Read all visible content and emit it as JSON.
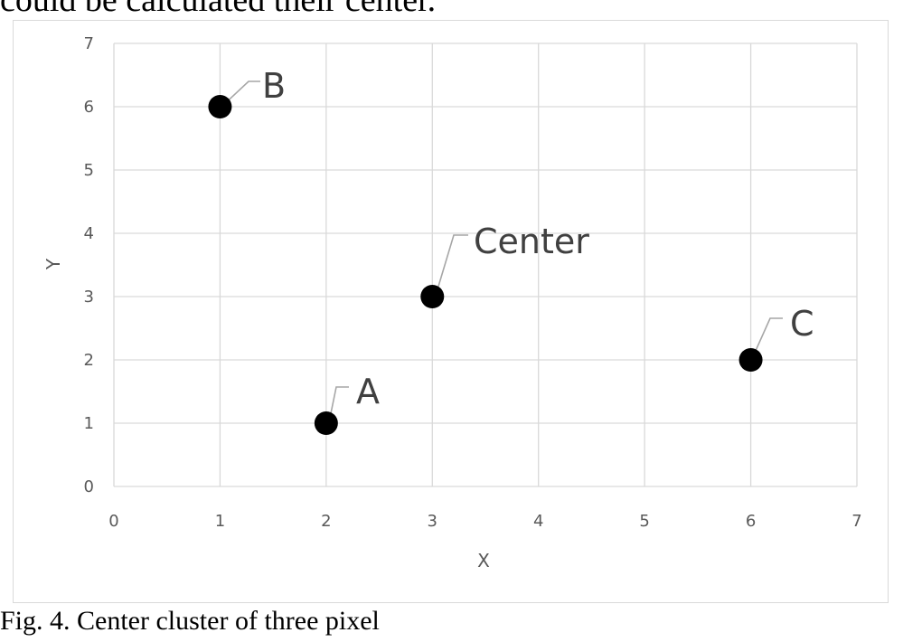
{
  "header": {
    "text": "could be calculated their center."
  },
  "figure": {
    "caption": "Fig. 4. Center cluster of three pixel"
  },
  "chart_data": {
    "type": "scatter",
    "title": "",
    "xlabel": "X",
    "ylabel": "Y",
    "xlim": [
      0,
      7
    ],
    "ylim": [
      0,
      7
    ],
    "xticks": [
      "0",
      "1",
      "2",
      "3",
      "4",
      "5",
      "6",
      "7"
    ],
    "yticks": [
      "0",
      "1",
      "2",
      "3",
      "4",
      "5",
      "6",
      "7"
    ],
    "grid": true,
    "legend": "none",
    "points": [
      {
        "label": "A",
        "x": 2,
        "y": 1
      },
      {
        "label": "B",
        "x": 1,
        "y": 6
      },
      {
        "label": "Center",
        "x": 3,
        "y": 3
      },
      {
        "label": "C",
        "x": 6,
        "y": 2
      }
    ],
    "colors": {
      "marker": "#000000",
      "grid": "#d9d9d9",
      "text": "#595959",
      "label": "#404040"
    }
  }
}
